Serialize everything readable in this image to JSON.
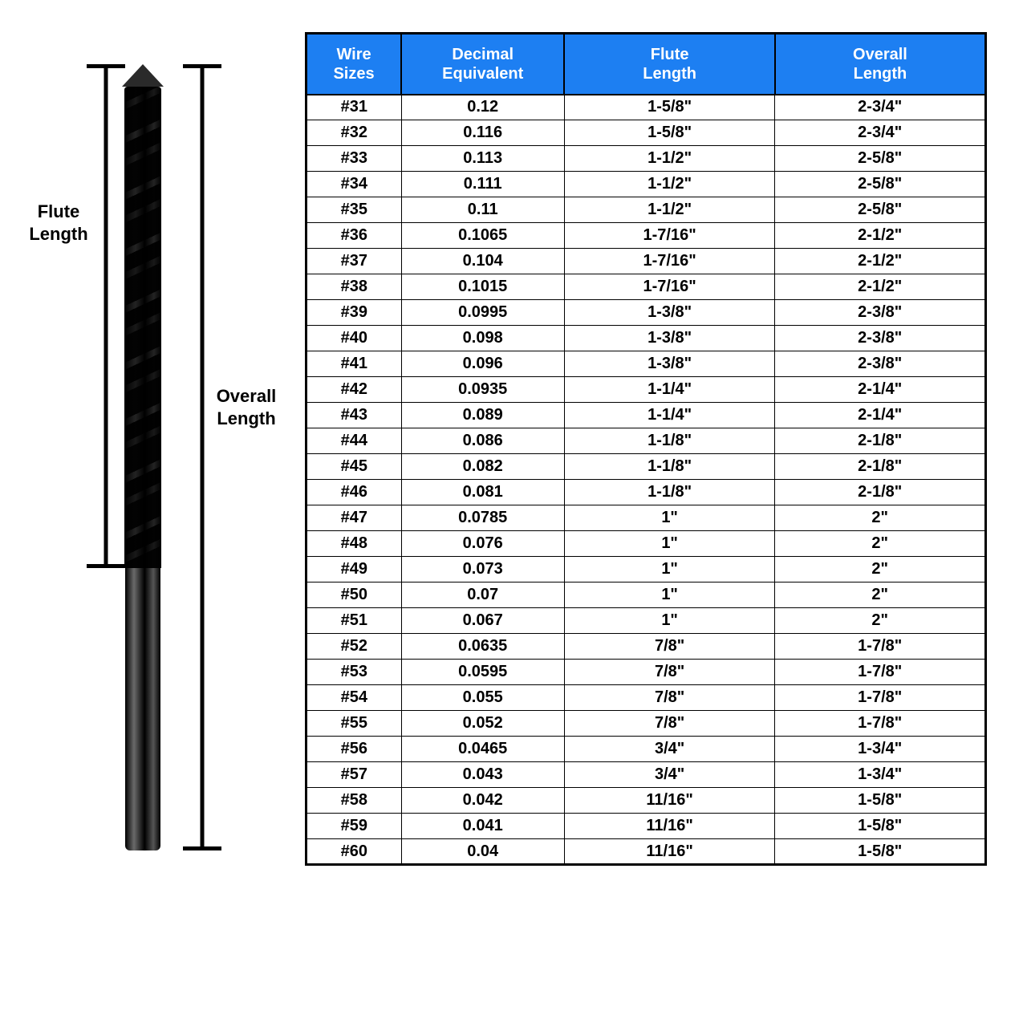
{
  "labels": {
    "flute": "Flute\nLength",
    "overall": "Overall\nLength"
  },
  "table": {
    "type": "table",
    "header_bg": "#1d7ff2",
    "header_fg": "#ffffff",
    "border_color": "#000000",
    "font_family": "Arial Black",
    "header_fontsize": 20,
    "cell_fontsize": 20,
    "columns": [
      {
        "key": "wire",
        "label": "Wire\nSizes",
        "width_pct": 14,
        "align": "center"
      },
      {
        "key": "dec",
        "label": "Decimal\nEquivalent",
        "width_pct": 24,
        "align": "center"
      },
      {
        "key": "flute",
        "label": "Flute\nLength",
        "width_pct": 31,
        "align": "center"
      },
      {
        "key": "overall",
        "label": "Overall\nLength",
        "width_pct": 31,
        "align": "center"
      }
    ],
    "rows": [
      {
        "wire": "#31",
        "dec": "0.12",
        "flute": "1-5/8\"",
        "overall": "2-3/4\""
      },
      {
        "wire": "#32",
        "dec": "0.116",
        "flute": "1-5/8\"",
        "overall": "2-3/4\""
      },
      {
        "wire": "#33",
        "dec": "0.113",
        "flute": "1-1/2\"",
        "overall": "2-5/8\""
      },
      {
        "wire": "#34",
        "dec": "0.111",
        "flute": "1-1/2\"",
        "overall": "2-5/8\""
      },
      {
        "wire": "#35",
        "dec": "0.11",
        "flute": "1-1/2\"",
        "overall": "2-5/8\""
      },
      {
        "wire": "#36",
        "dec": "0.1065",
        "flute": "1-7/16\"",
        "overall": "2-1/2\""
      },
      {
        "wire": "#37",
        "dec": "0.104",
        "flute": "1-7/16\"",
        "overall": "2-1/2\""
      },
      {
        "wire": "#38",
        "dec": "0.1015",
        "flute": "1-7/16\"",
        "overall": "2-1/2\""
      },
      {
        "wire": "#39",
        "dec": "0.0995",
        "flute": "1-3/8\"",
        "overall": "2-3/8\""
      },
      {
        "wire": "#40",
        "dec": "0.098",
        "flute": "1-3/8\"",
        "overall": "2-3/8\""
      },
      {
        "wire": "#41",
        "dec": "0.096",
        "flute": "1-3/8\"",
        "overall": "2-3/8\""
      },
      {
        "wire": "#42",
        "dec": "0.0935",
        "flute": "1-1/4\"",
        "overall": "2-1/4\""
      },
      {
        "wire": "#43",
        "dec": "0.089",
        "flute": "1-1/4\"",
        "overall": "2-1/4\""
      },
      {
        "wire": "#44",
        "dec": "0.086",
        "flute": "1-1/8\"",
        "overall": "2-1/8\""
      },
      {
        "wire": "#45",
        "dec": "0.082",
        "flute": "1-1/8\"",
        "overall": "2-1/8\""
      },
      {
        "wire": "#46",
        "dec": "0.081",
        "flute": "1-1/8\"",
        "overall": "2-1/8\""
      },
      {
        "wire": "#47",
        "dec": "0.0785",
        "flute": "1\"",
        "overall": "2\""
      },
      {
        "wire": "#48",
        "dec": "0.076",
        "flute": "1\"",
        "overall": "2\""
      },
      {
        "wire": "#49",
        "dec": "0.073",
        "flute": "1\"",
        "overall": "2\""
      },
      {
        "wire": "#50",
        "dec": "0.07",
        "flute": "1\"",
        "overall": "2\""
      },
      {
        "wire": "#51",
        "dec": "0.067",
        "flute": "1\"",
        "overall": "2\""
      },
      {
        "wire": "#52",
        "dec": "0.0635",
        "flute": "7/8\"",
        "overall": "1-7/8\""
      },
      {
        "wire": "#53",
        "dec": "0.0595",
        "flute": "7/8\"",
        "overall": "1-7/8\""
      },
      {
        "wire": "#54",
        "dec": "0.055",
        "flute": "7/8\"",
        "overall": "1-7/8\""
      },
      {
        "wire": "#55",
        "dec": "0.052",
        "flute": "7/8\"",
        "overall": "1-7/8\""
      },
      {
        "wire": "#56",
        "dec": "0.0465",
        "flute": "3/4\"",
        "overall": "1-3/4\""
      },
      {
        "wire": "#57",
        "dec": "0.043",
        "flute": "3/4\"",
        "overall": "1-3/4\""
      },
      {
        "wire": "#58",
        "dec": "0.042",
        "flute": "11/16\"",
        "overall": "1-5/8\""
      },
      {
        "wire": "#59",
        "dec": "0.041",
        "flute": "11/16\"",
        "overall": "1-5/8\""
      },
      {
        "wire": "#60",
        "dec": "0.04",
        "flute": "11/16\"",
        "overall": "1-5/8\""
      }
    ]
  }
}
